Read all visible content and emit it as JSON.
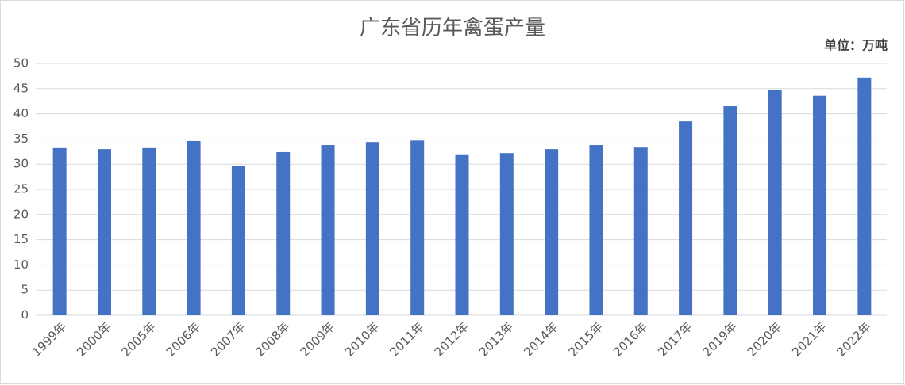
{
  "chart_data": {
    "type": "bar",
    "title": "广东省历年禽蛋产量",
    "unit_label": "单位：万吨",
    "categories": [
      "1999年",
      "2000年",
      "2005年",
      "2006年",
      "2007年",
      "2008年",
      "2009年",
      "2010年",
      "2011年",
      "2012年",
      "2013年",
      "2014年",
      "2015年",
      "2016年",
      "2017年",
      "2019年",
      "2020年",
      "2021年",
      "2022年"
    ],
    "values": [
      33.2,
      33.0,
      33.2,
      34.6,
      29.7,
      32.4,
      33.8,
      34.4,
      34.7,
      31.8,
      32.2,
      33.0,
      33.8,
      33.3,
      38.5,
      41.5,
      44.7,
      43.6,
      47.2
    ],
    "color": "#4472c4",
    "ylim": [
      0,
      50
    ],
    "yticks": [
      0,
      5,
      10,
      15,
      20,
      25,
      30,
      35,
      40,
      45,
      50
    ],
    "grid": true
  }
}
